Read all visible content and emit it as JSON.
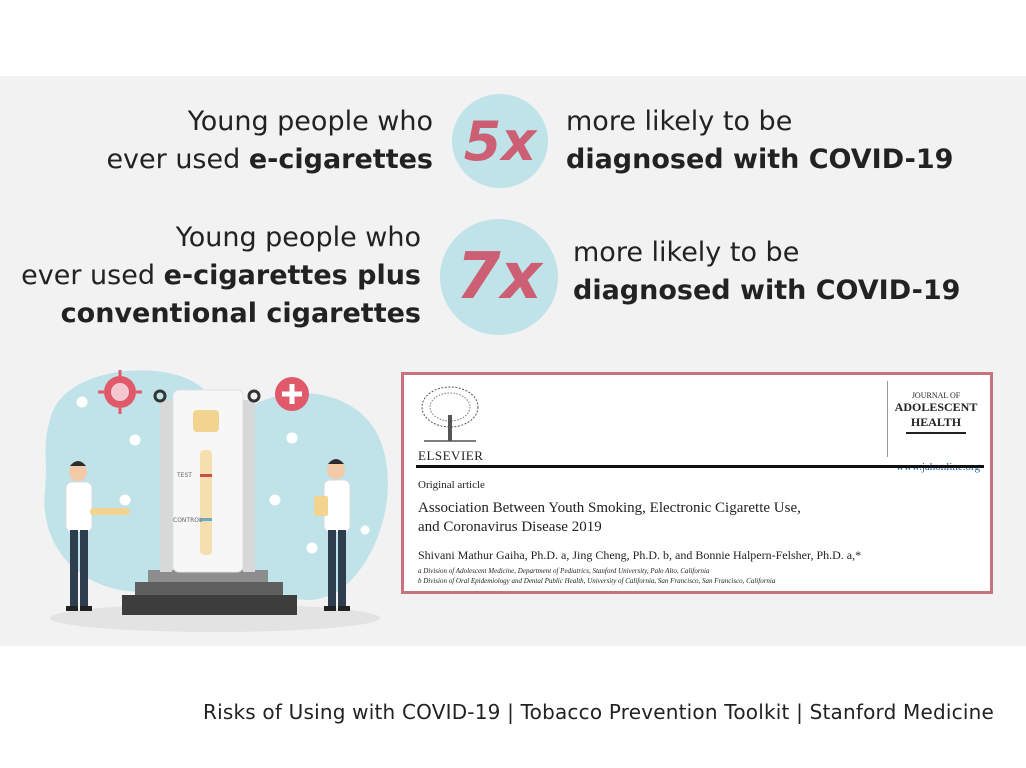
{
  "stat1": {
    "lhs_line1": "Young people who",
    "lhs_line2_plain": "ever used ",
    "lhs_line2_bold": "e-cigarettes",
    "multiplier": "5x",
    "rhs_line1": "more likely to be",
    "rhs_line2": "diagnosed with COVID-19"
  },
  "stat2": {
    "lhs_line1": "Young people who",
    "lhs_line2_plain": "ever used ",
    "lhs_line2_bold": "e-cigarettes plus",
    "lhs_line3": "conventional cigarettes",
    "multiplier": "7x",
    "rhs_line1": "more likely to be",
    "rhs_line2": "diagnosed with COVID-19"
  },
  "illustration": {
    "test_label": "TEST",
    "control_label": "CONTROL"
  },
  "article": {
    "publisher": "ELSEVIER",
    "journal_line1": "JOURNAL OF",
    "journal_line2": "ADOLESCENT",
    "journal_line3": "HEALTH",
    "journal_url": "www.jahonline.org",
    "article_type": "Original article",
    "title_line1": "Association Between Youth Smoking, Electronic Cigarette Use,",
    "title_line2": "and Coronavirus Disease 2019",
    "authors": "Shivani Mathur Gaiha, Ph.D. a, Jing Cheng, Ph.D. b, and Bonnie Halpern-Felsher, Ph.D. a,*",
    "affiliation_a": "a Division of Adolescent Medicine, Department of Pediatrics, Stanford University, Palo Alto, California",
    "affiliation_b": "b Division of Oral Epidemiology and Dental Public Health, University of California, San Francisco, San Francisco, California"
  },
  "footer": {
    "caption": "Risks of Using with COVID-19 | Tobacco Prevention Toolkit | Stanford Medicine"
  },
  "colors": {
    "accent_circle": "#bfe3e8",
    "multiplier_text": "#cc5f73",
    "paper_border": "#c7737f",
    "slide_bg": "#f2f2f2"
  }
}
